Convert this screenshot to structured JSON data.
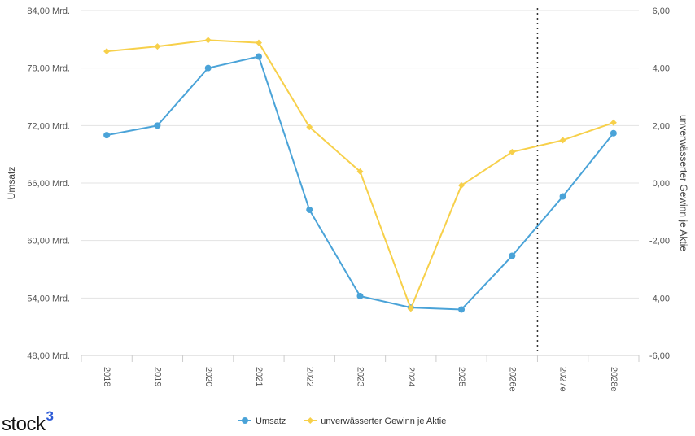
{
  "logo": {
    "text": "stock",
    "superscript": "3"
  },
  "chart_data": {
    "type": "line",
    "categories": [
      "2018",
      "2019",
      "2020",
      "2021",
      "2022",
      "2023",
      "2024",
      "2025",
      "2026e",
      "2027e",
      "2028e"
    ],
    "forecast_divider_after": "2026e",
    "y_left": {
      "label": "Umsatz",
      "ylim": [
        48,
        84
      ],
      "ticks": [
        48,
        54,
        60,
        66,
        72,
        78,
        84
      ],
      "tick_labels": [
        "48,00 Mrd.",
        "54,00 Mrd.",
        "60,00 Mrd.",
        "66,00 Mrd.",
        "72,00 Mrd.",
        "78,00 Mrd.",
        "84,00 Mrd."
      ]
    },
    "y_right": {
      "label": "unverwässerter Gewinn je Aktie",
      "ylim": [
        -6,
        6
      ],
      "ticks": [
        -6,
        -4,
        -2,
        0,
        2,
        4,
        6
      ],
      "tick_labels": [
        "-6,00",
        "-4,00",
        "-2,00",
        "0,00",
        "2,00",
        "4,00",
        "6,00"
      ]
    },
    "series": [
      {
        "name": "Umsatz",
        "axis": "left",
        "color": "#4aa3d8",
        "marker": "circle",
        "values": [
          71.0,
          72.0,
          78.0,
          79.2,
          63.2,
          54.2,
          53.0,
          52.8,
          58.4,
          64.6,
          71.2
        ]
      },
      {
        "name": "unverwässerter Gewinn je Aktie",
        "axis": "right",
        "color": "#f7d04a",
        "marker": "diamond",
        "values": [
          4.58,
          4.75,
          4.97,
          4.88,
          1.95,
          0.4,
          -4.37,
          -0.08,
          1.08,
          1.49,
          2.1
        ]
      }
    ],
    "grid": "horizontal",
    "legend": "bottom-center"
  }
}
